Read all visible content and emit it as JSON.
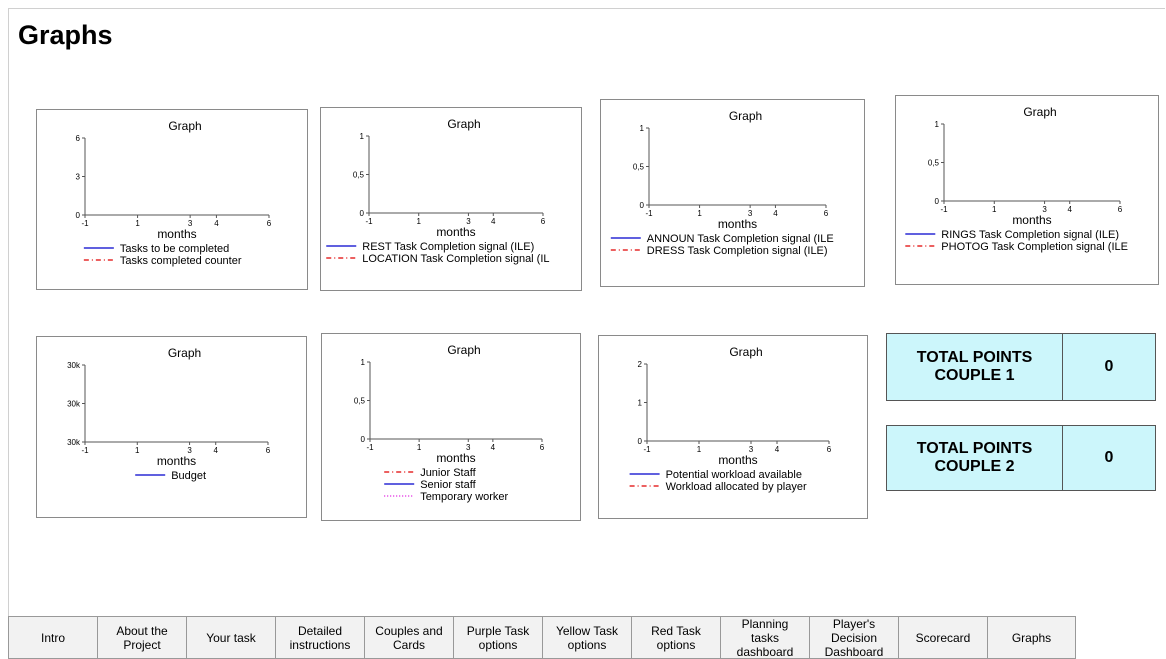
{
  "page": {
    "title": "Graphs"
  },
  "chart_data": [
    {
      "type": "line",
      "title": "Graph",
      "xlabel": "months",
      "ylabel": "",
      "xticks": [
        "-1",
        "1",
        "3",
        "4",
        "6"
      ],
      "yticks": [
        "0",
        "3",
        "6"
      ],
      "series": [
        {
          "name": "Tasks to be completed",
          "color": "#0000cc",
          "style": "solid",
          "values": []
        },
        {
          "name": "Tasks completed counter",
          "color": "#e00000",
          "style": "dashdot",
          "values": []
        }
      ]
    },
    {
      "type": "line",
      "title": "Graph",
      "xlabel": "months",
      "ylabel": "",
      "xticks": [
        "-1",
        "1",
        "3",
        "4",
        "6"
      ],
      "yticks": [
        "0",
        "0,5",
        "1"
      ],
      "series": [
        {
          "name": "REST Task Completion signal (ILE)",
          "color": "#0000cc",
          "style": "solid",
          "values": []
        },
        {
          "name": "LOCATION Task Completion signal (IL",
          "color": "#e00000",
          "style": "dashdot",
          "values": []
        }
      ]
    },
    {
      "type": "line",
      "title": "Graph",
      "xlabel": "months",
      "ylabel": "",
      "xticks": [
        "-1",
        "1",
        "3",
        "4",
        "6"
      ],
      "yticks": [
        "0",
        "0,5",
        "1"
      ],
      "series": [
        {
          "name": "ANNOUN Task Completion signal (ILE",
          "color": "#0000cc",
          "style": "solid",
          "values": []
        },
        {
          "name": "DRESS Task Completion signal (ILE)",
          "color": "#e00000",
          "style": "dashdot",
          "values": []
        }
      ]
    },
    {
      "type": "line",
      "title": "Graph",
      "xlabel": "months",
      "ylabel": "",
      "xticks": [
        "-1",
        "1",
        "3",
        "4",
        "6"
      ],
      "yticks": [
        "0",
        "0,5",
        "1"
      ],
      "series": [
        {
          "name": "RINGS Task Completion signal (ILE)",
          "color": "#0000cc",
          "style": "solid",
          "values": []
        },
        {
          "name": "PHOTOG Task Completion signal (ILE",
          "color": "#e00000",
          "style": "dashdot",
          "values": []
        }
      ]
    },
    {
      "type": "line",
      "title": "Graph",
      "xlabel": "months",
      "ylabel": "",
      "xticks": [
        "-1",
        "1",
        "3",
        "4",
        "6"
      ],
      "yticks": [
        "30k",
        "30k",
        "30k"
      ],
      "series": [
        {
          "name": "Budget",
          "color": "#0000cc",
          "style": "solid",
          "values": []
        }
      ]
    },
    {
      "type": "line",
      "title": "Graph",
      "xlabel": "months",
      "ylabel": "",
      "xticks": [
        "-1",
        "1",
        "3",
        "4",
        "6"
      ],
      "yticks": [
        "0",
        "0,5",
        "1"
      ],
      "series": [
        {
          "name": "Junior Staff",
          "color": "#e00000",
          "style": "dashdot",
          "values": []
        },
        {
          "name": "Senior staff",
          "color": "#0000cc",
          "style": "solid",
          "values": []
        },
        {
          "name": "Temporary worker",
          "color": "#dd00dd",
          "style": "dotted",
          "values": []
        }
      ]
    },
    {
      "type": "line",
      "title": "Graph",
      "xlabel": "months",
      "ylabel": "",
      "xticks": [
        "-1",
        "1",
        "3",
        "4",
        "6"
      ],
      "yticks": [
        "0",
        "1",
        "2"
      ],
      "series": [
        {
          "name": "Potential workload available",
          "color": "#0000cc",
          "style": "solid",
          "values": []
        },
        {
          "name": "Workload allocated by player",
          "color": "#e00000",
          "style": "dashdot",
          "values": []
        }
      ]
    }
  ],
  "points": [
    {
      "label": "TOTAL POINTS\nCOUPLE 1",
      "value": "0"
    },
    {
      "label": "TOTAL POINTS\nCOUPLE 2",
      "value": "0"
    }
  ],
  "tabs": [
    "Intro",
    "About the\nProject",
    "Your task",
    "Detailed\ninstructions",
    "Couples and\nCards",
    "Purple Task\noptions",
    "Yellow Task\noptions",
    "Red Task\noptions",
    "Planning\ntasks\ndashboard",
    "Player's\nDecision\nDashboard",
    "Scorecard",
    "Graphs"
  ],
  "colors": {
    "points_bg": "#ccf6fb",
    "tab_bg": "#f2f2f2"
  }
}
